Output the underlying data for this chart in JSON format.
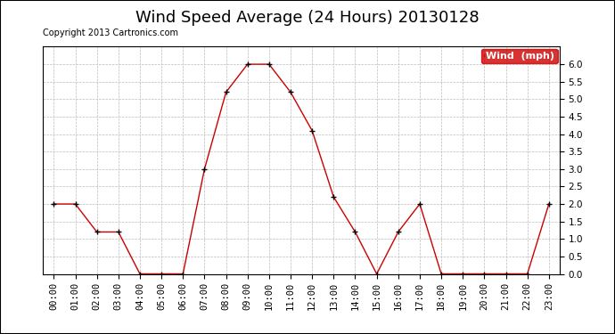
{
  "title": "Wind Speed Average (24 Hours) 20130128",
  "copyright": "Copyright 2013 Cartronics.com",
  "legend_label": "Wind  (mph)",
  "legend_bg": "#cc0000",
  "legend_text_color": "#ffffff",
  "x_labels": [
    "00:00",
    "01:00",
    "02:00",
    "03:00",
    "04:00",
    "05:00",
    "06:00",
    "07:00",
    "08:00",
    "09:00",
    "10:00",
    "11:00",
    "12:00",
    "13:00",
    "14:00",
    "15:00",
    "16:00",
    "17:00",
    "18:00",
    "19:00",
    "20:00",
    "21:00",
    "22:00",
    "23:00"
  ],
  "y_values": [
    2.0,
    2.0,
    1.2,
    1.2,
    0.0,
    0.0,
    0.0,
    3.0,
    5.2,
    6.0,
    6.0,
    5.2,
    4.1,
    2.2,
    1.2,
    0.0,
    1.2,
    2.0,
    0.0,
    0.0,
    0.0,
    0.0,
    0.0,
    2.0
  ],
  "line_color": "#cc0000",
  "marker_color": "#000000",
  "bg_color": "#ffffff",
  "plot_bg_color": "#ffffff",
  "grid_color": "#bbbbbb",
  "outer_border_color": "#000000",
  "ylim": [
    0.0,
    6.5
  ],
  "yticks": [
    0.0,
    0.5,
    1.0,
    1.5,
    2.0,
    2.5,
    3.0,
    3.5,
    4.0,
    4.5,
    5.0,
    5.5,
    6.0
  ],
  "title_fontsize": 13,
  "tick_fontsize": 7.5,
  "copyright_fontsize": 7
}
